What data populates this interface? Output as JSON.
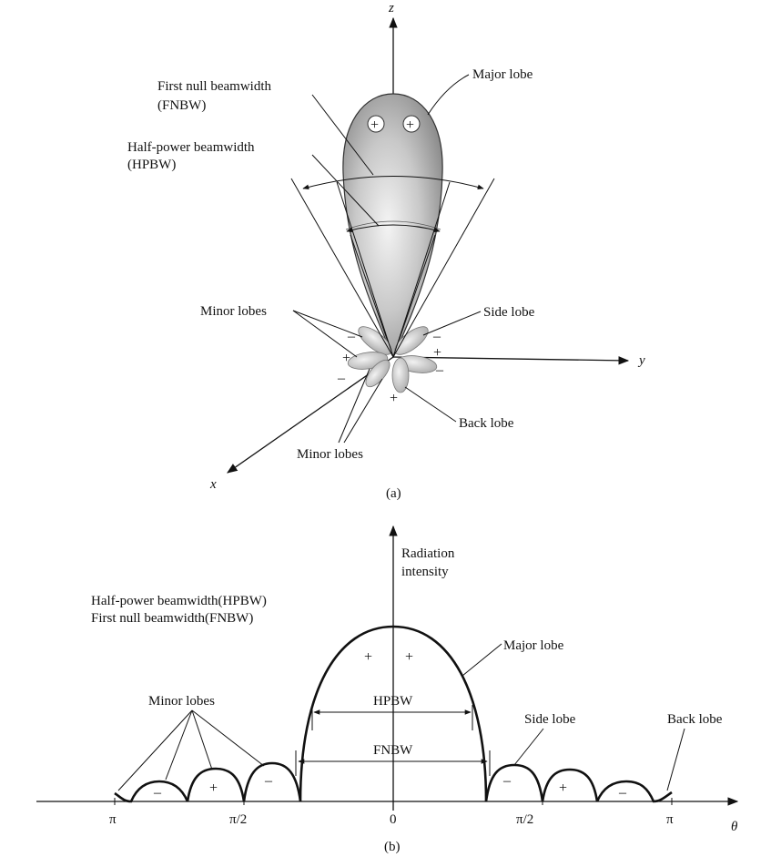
{
  "figure_a": {
    "axis_z": "z",
    "axis_y": "y",
    "axis_x": "x",
    "major_lobe": "Major lobe",
    "fnbw_line1": "First null beamwidth",
    "fnbw_line2": "(FNBW)",
    "hpbw_line1": "Half-power beamwidth",
    "hpbw_line2": "(HPBW)",
    "minor_lobes_upper": "Minor lobes",
    "side_lobe": "Side lobe",
    "back_lobe": "Back lobe",
    "minor_lobes_lower": "Minor lobes",
    "caption": "(a)",
    "plus": "+",
    "minus": "–"
  },
  "figure_b": {
    "ylabel_line1": "Radiation",
    "ylabel_line2": "intensity",
    "hpbw_legend": "Half-power beamwidth(HPBW)",
    "fnbw_legend": "First null beamwidth(FNBW)",
    "major_lobe": "Major lobe",
    "minor_lobes": "Minor lobes",
    "side_lobe": "Side lobe",
    "back_lobe": "Back lobe",
    "hpbw": "HPBW",
    "fnbw": "FNBW",
    "ticks": [
      "π",
      "π/2",
      "0",
      "π/2",
      "π"
    ],
    "theta": "θ",
    "caption": "(b)",
    "plus": "+",
    "minus": "–"
  }
}
